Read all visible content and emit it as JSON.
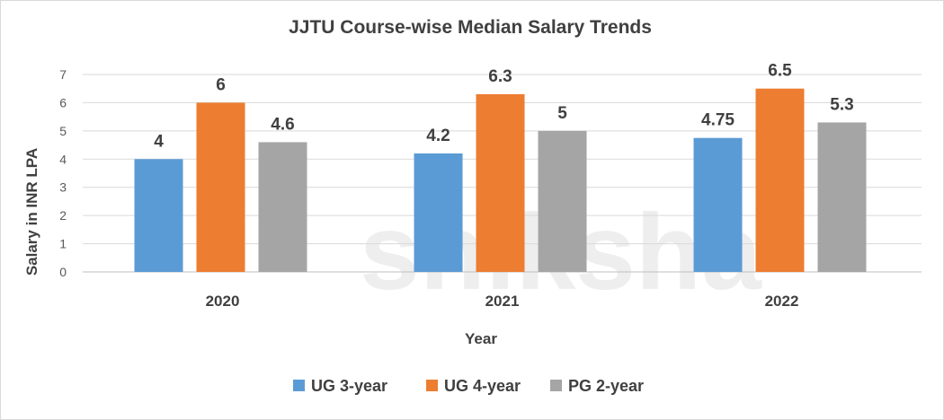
{
  "chart_data": {
    "type": "bar",
    "title": "JJTU Course-wise Median Salary Trends",
    "xlabel": "Year",
    "ylabel": "Salary in INR LPA",
    "categories": [
      "2020",
      "2021",
      "2022"
    ],
    "series": [
      {
        "name": "UG 3-year",
        "values": [
          4,
          4.2,
          4.75
        ],
        "color": "#5b9bd5"
      },
      {
        "name": "UG 4-year",
        "values": [
          6,
          6.3,
          6.5
        ],
        "color": "#ed7d31"
      },
      {
        "name": "PG 2-year",
        "values": [
          4.6,
          5,
          5.3
        ],
        "color": "#a5a5a5"
      }
    ],
    "ylim": [
      0,
      7
    ],
    "yticks": [
      0,
      1,
      2,
      3,
      4,
      5,
      6,
      7
    ],
    "grid": true,
    "legend": "bottom",
    "data_labels": true
  },
  "watermark": "shiksha"
}
